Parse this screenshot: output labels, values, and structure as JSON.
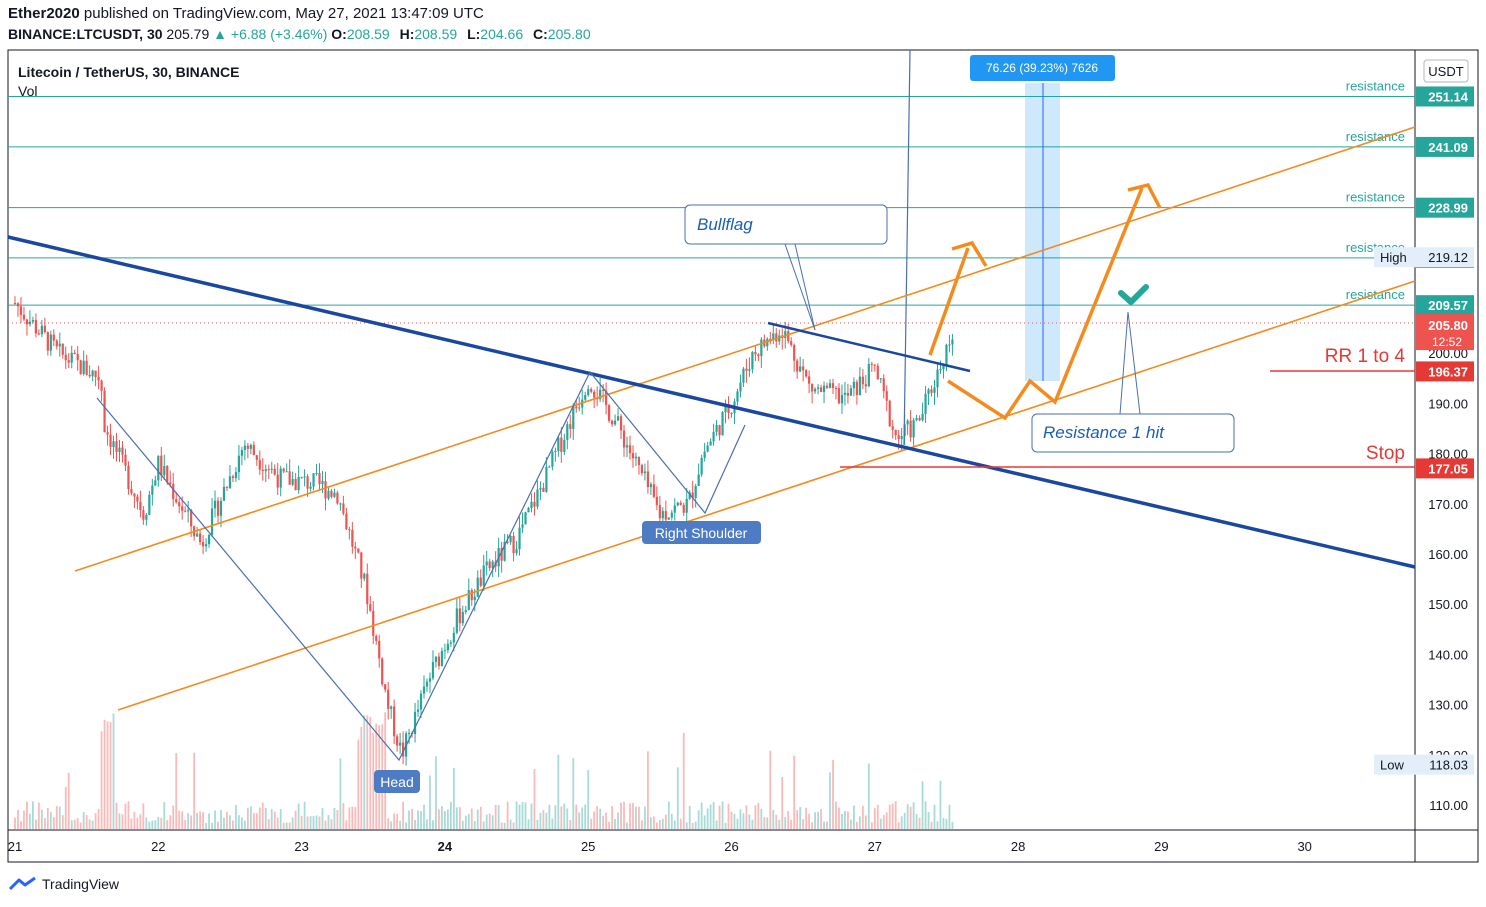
{
  "header": {
    "author": "Ether2020",
    "published": "published on TradingView.com, May 27, 2021 13:47:09 UTC",
    "symbol": "BINANCE:LTCUSDT, 30",
    "last": "205.79",
    "change": "▲ +6.88 (+3.46%)",
    "open_label": "O:",
    "open": "208.59",
    "high_label": "H:",
    "high": "208.59",
    "low_label": "L:",
    "low": "204.66",
    "close_label": "C:",
    "close": "205.80"
  },
  "legend": {
    "title": "Litecoin / TetherUS, 30, BINANCE",
    "vol": "Vol"
  },
  "currency": "USDT",
  "footer": {
    "brand": "TradingView"
  },
  "colors": {
    "up": "#26a69a",
    "down": "#ef5350",
    "orange": "#f48b1f",
    "trend": "#1a47a0",
    "stop": "#e53935",
    "level": "#26a69a",
    "blueLine": "#4a6fb0"
  },
  "chart_data": {
    "type": "candlestick",
    "title": "Litecoin / TetherUS, 30, BINANCE",
    "ylim": [
      104,
      263
    ],
    "y_ticks": [
      "110.00",
      "120.00",
      "130.00",
      "140.00",
      "150.00",
      "160.00",
      "170.00",
      "180.00",
      "190.00",
      "200.00"
    ],
    "x_ticks": [
      "21",
      "22",
      "23",
      "24",
      "25",
      "26",
      "27",
      "28",
      "29",
      "30"
    ],
    "price_path": [
      [
        21.0,
        210
      ],
      [
        21.3,
        200
      ],
      [
        21.6,
        195
      ],
      [
        21.62,
        186
      ],
      [
        21.9,
        168
      ],
      [
        22.0,
        178
      ],
      [
        22.3,
        162
      ],
      [
        22.6,
        182
      ],
      [
        22.85,
        175
      ],
      [
        23.1,
        174
      ],
      [
        23.25,
        172
      ],
      [
        23.45,
        153
      ],
      [
        23.6,
        130
      ],
      [
        23.7,
        120
      ],
      [
        23.9,
        136
      ],
      [
        24.1,
        148
      ],
      [
        24.3,
        157
      ],
      [
        24.5,
        163
      ],
      [
        24.7,
        175
      ],
      [
        25.0,
        195
      ],
      [
        25.2,
        186
      ],
      [
        25.4,
        174
      ],
      [
        25.5,
        168
      ],
      [
        25.7,
        170
      ],
      [
        25.8,
        180
      ],
      [
        26.0,
        190
      ],
      [
        26.15,
        200
      ],
      [
        26.35,
        205
      ],
      [
        26.55,
        193
      ],
      [
        26.8,
        191
      ],
      [
        27.0,
        197
      ],
      [
        27.15,
        183
      ],
      [
        27.3,
        186
      ],
      [
        27.45,
        197
      ],
      [
        27.55,
        205
      ]
    ],
    "resistance_levels": [
      {
        "label": "resistance",
        "value": "251.14"
      },
      {
        "label": "resistance",
        "value": "241.09"
      },
      {
        "label": "resistance",
        "value": "228.99"
      },
      {
        "label": "resistance",
        "value": "218.98"
      },
      {
        "label": "resistance",
        "value": "209.57"
      }
    ],
    "high_label": "High",
    "high_value": "219.12",
    "low_label": "Low",
    "low_value": "118.03",
    "current_price": "205.80",
    "countdown": "12:52",
    "target": {
      "label": "RR 1 to 4",
      "value": "196.37"
    },
    "stop": {
      "label": "Stop",
      "value": "177.05"
    },
    "measure_label": "76.26 (39.23%) 7626",
    "annotations": {
      "bullflag": "Bullflag",
      "resistance_hit": "Resistance 1 hit",
      "head": "Head",
      "right_shoulder": "Right Shoulder"
    }
  }
}
